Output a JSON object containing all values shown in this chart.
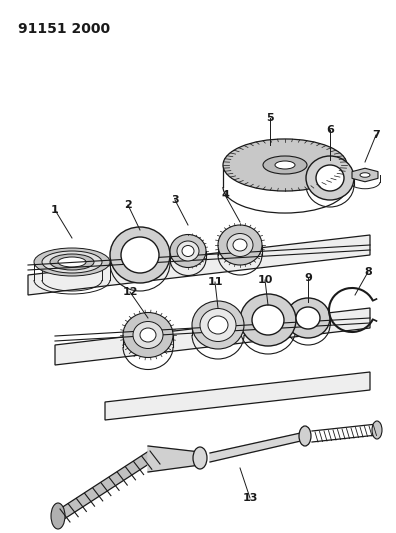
{
  "title": "91151 2000",
  "bg_color": "#ffffff",
  "line_color": "#1a1a1a",
  "title_fontsize": 10,
  "title_fontweight": "bold",
  "figw": 3.96,
  "figh": 5.33,
  "dpi": 100
}
